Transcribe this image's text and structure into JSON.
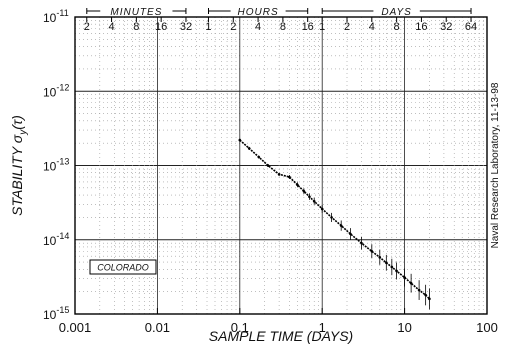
{
  "chart_data": {
    "type": "scatter",
    "xlabel": "SAMPLE TIME (DAYS)",
    "ylabel_main": "STABILITY σ",
    "ylabel_sub": "y",
    "ylabel_tail": "(τ)",
    "x_scale": "log",
    "y_scale": "log",
    "xlim": [
      0.001,
      100
    ],
    "ylim": [
      1e-15,
      1e-11
    ],
    "x_ticks": [
      {
        "value": 0.001,
        "label": "0.001"
      },
      {
        "value": 0.01,
        "label": "0.01"
      },
      {
        "value": 0.1,
        "label": "0.1"
      },
      {
        "value": 1,
        "label": "1"
      },
      {
        "value": 10,
        "label": "10"
      },
      {
        "value": 100,
        "label": "100"
      }
    ],
    "y_ticks": [
      {
        "value": 1e-11,
        "base": "10",
        "exp": "-11"
      },
      {
        "value": 1e-12,
        "base": "10",
        "exp": "-12"
      },
      {
        "value": 1e-13,
        "base": "10",
        "exp": "-13"
      },
      {
        "value": 1e-14,
        "base": "10",
        "exp": "-14"
      },
      {
        "value": 1e-15,
        "base": "10",
        "exp": "-15"
      }
    ],
    "top_axis": {
      "groups": [
        {
          "label": "MINUTES",
          "from": 0.00139,
          "to": 0.0222
        },
        {
          "label": "HOURS",
          "from": 0.0417,
          "to": 0.667
        },
        {
          "label": "DAYS",
          "from": 1,
          "to": 64
        }
      ],
      "ticks": [
        {
          "value": 0.001389,
          "label": "2"
        },
        {
          "value": 0.002778,
          "label": "4"
        },
        {
          "value": 0.005556,
          "label": "8"
        },
        {
          "value": 0.01111,
          "label": "16"
        },
        {
          "value": 0.02222,
          "label": "32"
        },
        {
          "value": 0.041667,
          "label": "1"
        },
        {
          "value": 0.083333,
          "label": "2"
        },
        {
          "value": 0.166667,
          "label": "4"
        },
        {
          "value": 0.333333,
          "label": "8"
        },
        {
          "value": 0.666667,
          "label": "16"
        },
        {
          "value": 1,
          "label": "1"
        },
        {
          "value": 2,
          "label": "2"
        },
        {
          "value": 4,
          "label": "4"
        },
        {
          "value": 8,
          "label": "8"
        },
        {
          "value": 16,
          "label": "16"
        },
        {
          "value": 32,
          "label": "32"
        },
        {
          "value": 64,
          "label": "64"
        }
      ]
    },
    "grid": true,
    "legend": {
      "label": "COLORADO",
      "placement": "bottom-left"
    },
    "side_note": "Naval Research Laboratory, 11-13-98",
    "series": [
      {
        "x": [
          0.1,
          0.13,
          0.17,
          0.22,
          0.3,
          0.4,
          0.5,
          0.6,
          0.7,
          0.8,
          1.0,
          1.3,
          1.7,
          2.2,
          3.0,
          4.0,
          5.0,
          6.0,
          7.0,
          8.0,
          10.0,
          12.0,
          15.0,
          18.0,
          20.0
        ],
        "y": [
          2.2e-13,
          1.7e-13,
          1.3e-13,
          1e-13,
          7.6e-14,
          7e-14,
          5.5e-14,
          4.5e-14,
          3.8e-14,
          3.3e-14,
          2.6e-14,
          2e-14,
          1.55e-14,
          1.2e-14,
          9e-15,
          7e-15,
          5.8e-15,
          4.9e-15,
          4.3e-15,
          3.8e-15,
          3.1e-15,
          2.6e-15,
          2.1e-15,
          1.8e-15,
          1.6e-15
        ]
      }
    ]
  }
}
